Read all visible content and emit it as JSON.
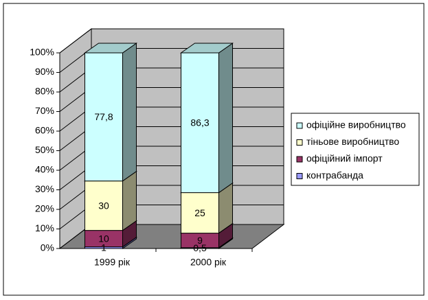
{
  "chart_data": {
    "type": "bar",
    "stacking": "percent",
    "categories": [
      "1999 рік",
      "2000 рік"
    ],
    "series": [
      {
        "name": "офіційне виробництво",
        "color": "#ccffff",
        "values": [
          77.8,
          86.3
        ],
        "value_labels": [
          "77,8",
          "86,3"
        ]
      },
      {
        "name": "тіньове виробництво",
        "color": "#ffffcc",
        "values": [
          30,
          25
        ]
      },
      {
        "name": "офіційний імпорт",
        "color": "#993366",
        "values": [
          10,
          9
        ]
      },
      {
        "name": "контрабанда",
        "color": "#9999ff",
        "values": [
          1,
          0.5
        ],
        "value_labels": [
          "1",
          "0,5"
        ]
      }
    ],
    "ylim": [
      0,
      100
    ],
    "yticks": [
      {
        "value": 0,
        "label": "0%"
      },
      {
        "value": 10,
        "label": "10%"
      },
      {
        "value": 20,
        "label": "20%"
      },
      {
        "value": 30,
        "label": "30%"
      },
      {
        "value": 40,
        "label": "40%"
      },
      {
        "value": 50,
        "label": "50%"
      },
      {
        "value": 60,
        "label": "60%"
      },
      {
        "value": 70,
        "label": "70%"
      },
      {
        "value": 80,
        "label": "80%"
      },
      {
        "value": 90,
        "label": "90%"
      },
      {
        "value": 100,
        "label": "100%"
      }
    ],
    "grid": true,
    "legend": "right"
  }
}
